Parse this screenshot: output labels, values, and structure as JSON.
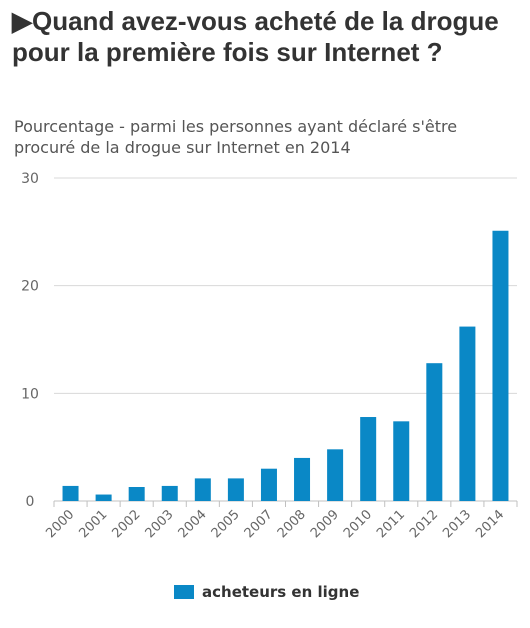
{
  "title": "▶Quand avez-vous acheté de la drogue pour la première fois sur Internet ?",
  "subtitle": "Pourcentage - parmi les personnes ayant déclaré s'être procuré de la drogue sur Internet en 2014",
  "colors": {
    "bar": "#0a88c6",
    "grid": "#d8d8d8",
    "axis": "#c0c0c0"
  },
  "chart_data": {
    "type": "bar",
    "categories": [
      "2000",
      "2001",
      "2002",
      "2003",
      "2004",
      "2005",
      "2007",
      "2008",
      "2009",
      "2010",
      "2011",
      "2012",
      "2013",
      "2014"
    ],
    "series": [
      {
        "name": "acheteurs en ligne",
        "values": [
          1.4,
          0.6,
          1.3,
          1.4,
          2.1,
          2.1,
          3.0,
          4.0,
          4.8,
          7.8,
          7.4,
          12.8,
          16.2,
          25.1
        ]
      }
    ],
    "ylim": [
      0,
      30
    ],
    "yticks": [
      0,
      10,
      20,
      30
    ],
    "xlabel": "",
    "ylabel": "",
    "grid": true,
    "legend": "bottom"
  }
}
